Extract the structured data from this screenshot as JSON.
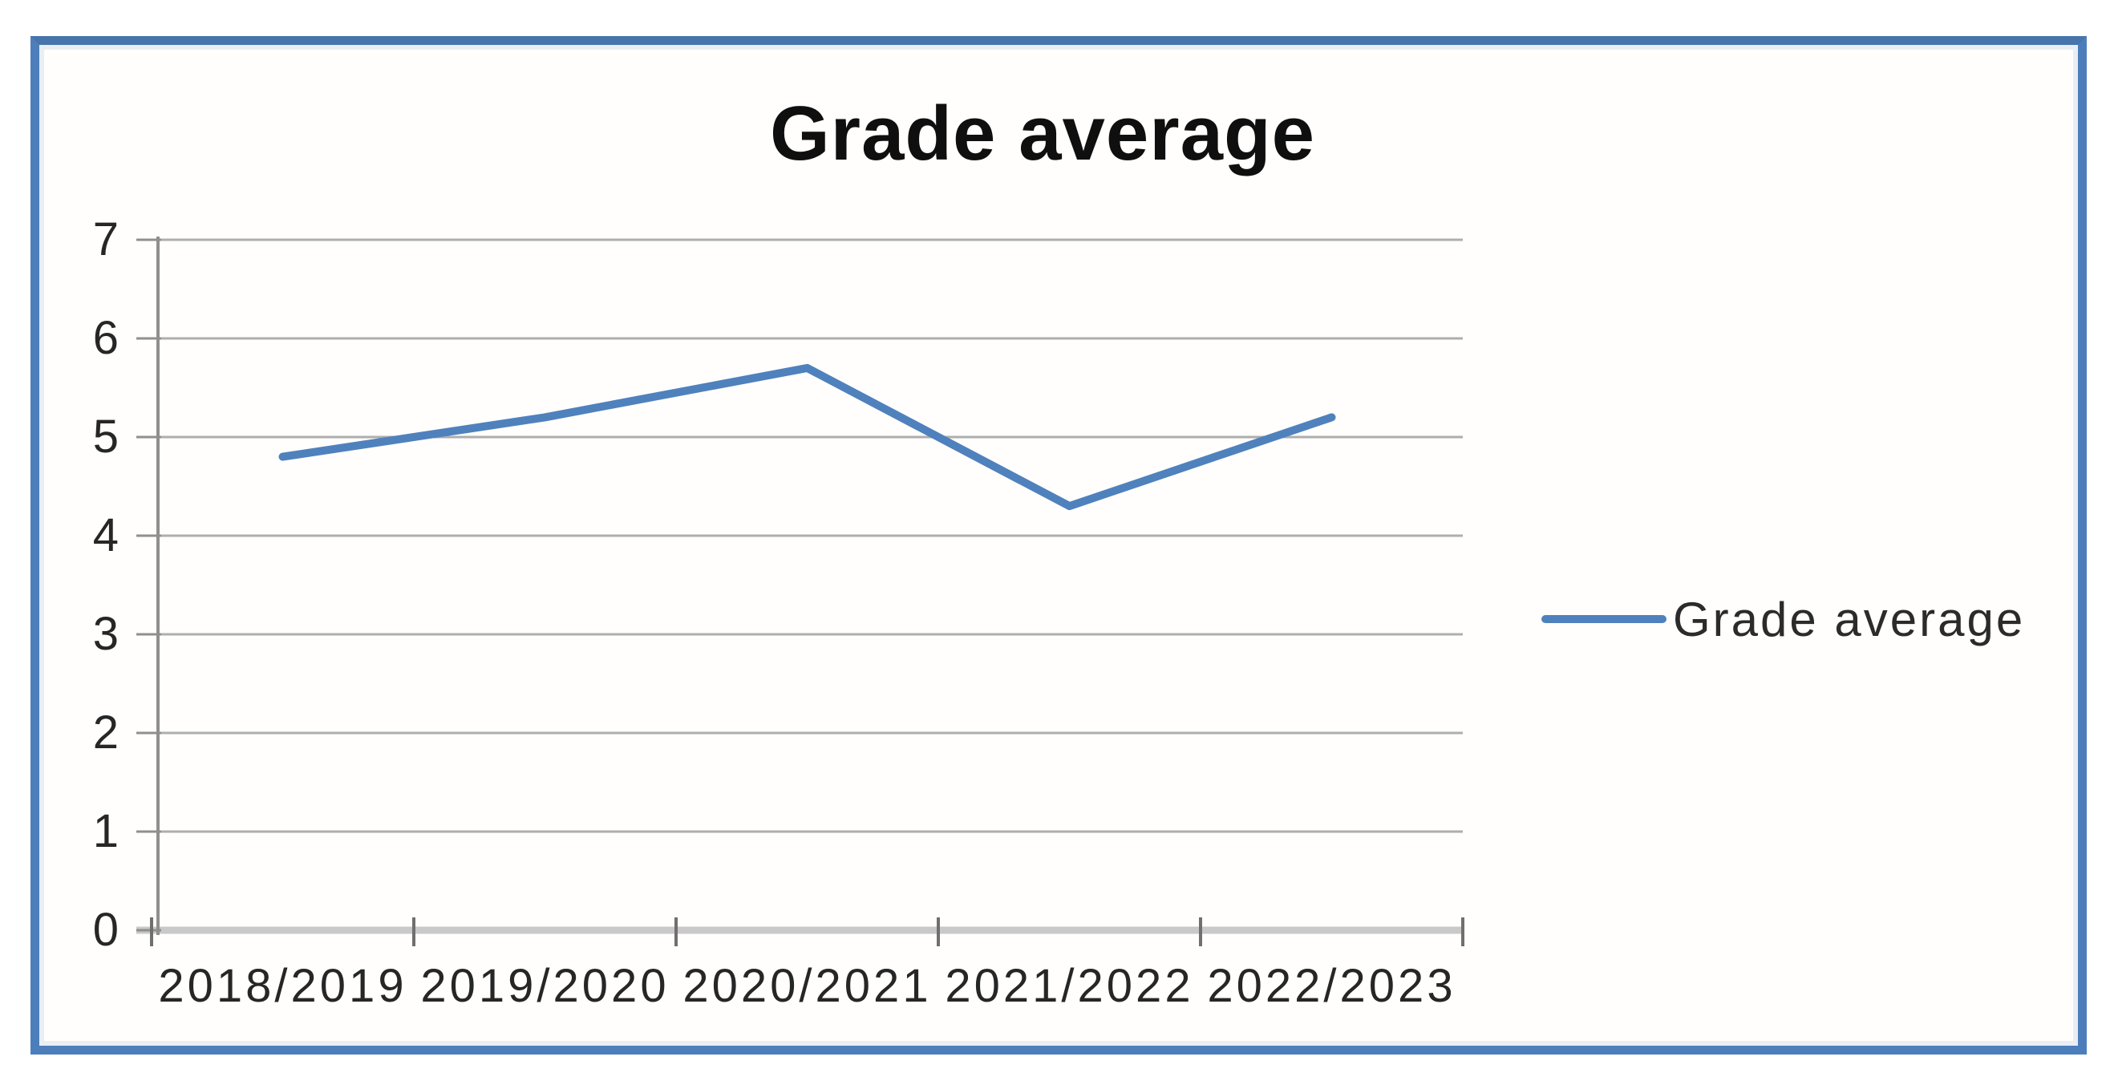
{
  "chart_data": {
    "type": "line",
    "title": "Grade average",
    "categories": [
      "2018/2019",
      "2019/2020",
      "2020/2021",
      "2021/2022",
      "2022/2023"
    ],
    "series": [
      {
        "name": "Grade average",
        "values": [
          4.8,
          5.2,
          5.7,
          4.3,
          5.2
        ]
      }
    ],
    "xlabel": "",
    "ylabel": "",
    "ylim": [
      0,
      7
    ],
    "yticks": [
      0,
      1,
      2,
      3,
      4,
      5,
      6,
      7
    ],
    "grid": true,
    "legend_position": "right",
    "colors": {
      "series": "#4f81bd",
      "frame_border": "#4d7ebc",
      "gridline": "#aeaeae",
      "y_axis": "#8f8f8f",
      "x_axis_band": "#c9c9c9",
      "tick": "#6f6f6f",
      "axis_text": "#262626",
      "title_text": "#0f0f0f",
      "plot_background": "#fffefc"
    }
  }
}
